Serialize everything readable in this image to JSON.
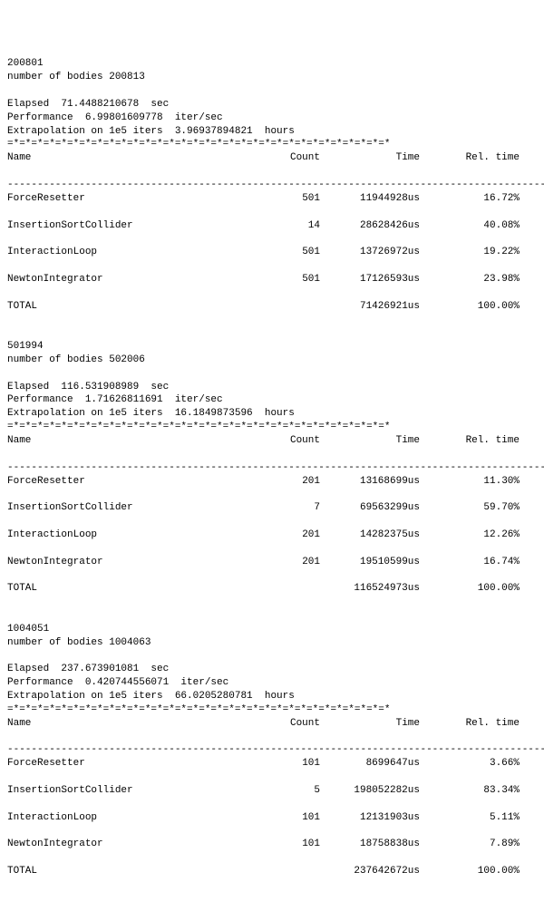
{
  "decor": {
    "separator_eq": "=*=*=*=*=*=*=*=*=*=*=*=*=*=*=*=*=*=*=*=*=*=*=*=*=*=*=*=*=*=*=*=*",
    "separator_dash": "---------------------------------------------------------------------------------------------",
    "header_name": "Name",
    "header_count": "Count",
    "header_time": "Time",
    "header_rel": "Rel. time"
  },
  "labels": {
    "number_of_bodies": "number of bodies",
    "elapsed_prefix": "Elapsed  ",
    "elapsed_suffix": "  sec",
    "performance_prefix": "Performance  ",
    "performance_suffix": "  iter/sec",
    "extrap_prefix": "Extrapolation on 1e5 iters  ",
    "extrap_suffix": "  hours"
  },
  "runs": [
    {
      "id": "200801",
      "num_bodies": "200813",
      "elapsed": "71.4488210678",
      "performance": "6.99801609778",
      "extrapolation": "3.96937894821",
      "rows": [
        {
          "name": "ForceResetter",
          "count": "501",
          "time": "11944928us",
          "rel": "16.72%"
        },
        {
          "name": "InsertionSortCollider",
          "count": "14",
          "time": "28628426us",
          "rel": "40.08%"
        },
        {
          "name": "InteractionLoop",
          "count": "501",
          "time": "13726972us",
          "rel": "19.22%"
        },
        {
          "name": "NewtonIntegrator",
          "count": "501",
          "time": "17126593us",
          "rel": "23.98%"
        },
        {
          "name": "TOTAL",
          "count": "",
          "time": "71426921us",
          "rel": "100.00%"
        }
      ]
    },
    {
      "id": "501994",
      "num_bodies": "502006",
      "elapsed": "116.531908989",
      "performance": "1.71626811691",
      "extrapolation": "16.1849873596",
      "rows": [
        {
          "name": "ForceResetter",
          "count": "201",
          "time": "13168699us",
          "rel": "11.30%"
        },
        {
          "name": "InsertionSortCollider",
          "count": "7",
          "time": "69563299us",
          "rel": "59.70%"
        },
        {
          "name": "InteractionLoop",
          "count": "201",
          "time": "14282375us",
          "rel": "12.26%"
        },
        {
          "name": "NewtonIntegrator",
          "count": "201",
          "time": "19510599us",
          "rel": "16.74%"
        },
        {
          "name": "TOTAL",
          "count": "",
          "time": "116524973us",
          "rel": "100.00%"
        }
      ]
    },
    {
      "id": "1004051",
      "num_bodies": "1004063",
      "elapsed": "237.673901081",
      "performance": "0.420744556071",
      "extrapolation": "66.0205280781",
      "rows": [
        {
          "name": "ForceResetter",
          "count": "101",
          "time": "8699647us",
          "rel": "3.66%"
        },
        {
          "name": "InsertionSortCollider",
          "count": "5",
          "time": "198052282us",
          "rel": "83.34%"
        },
        {
          "name": "InteractionLoop",
          "count": "101",
          "time": "12131903us",
          "rel": "5.11%"
        },
        {
          "name": "NewtonIntegrator",
          "count": "101",
          "time": "18758838us",
          "rel": "7.89%"
        },
        {
          "name": "TOTAL",
          "count": "",
          "time": "237642672us",
          "rel": "100.00%"
        }
      ]
    }
  ]
}
